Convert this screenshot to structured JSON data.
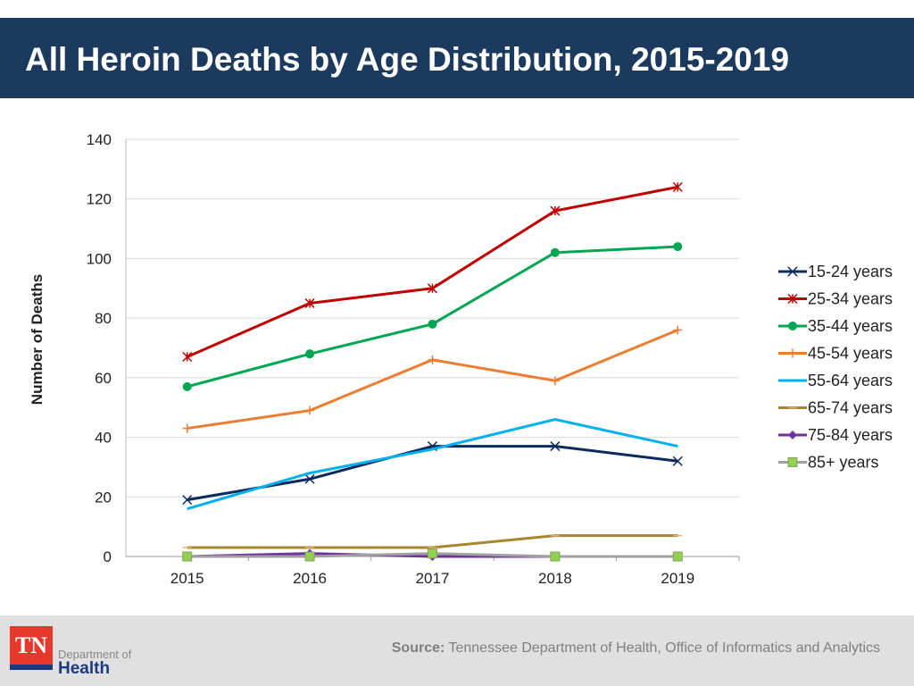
{
  "title": "All Heroin Deaths by Age Distribution, 2015-2019",
  "footer": {
    "source_label": "Source:",
    "source_text": "Tennessee Department of Health, Office of Informatics and Analytics",
    "logo": {
      "mark": "TN",
      "line1": "Department of",
      "line2": "Health"
    }
  },
  "chart_data": {
    "type": "line",
    "title": "",
    "xlabel": "",
    "ylabel": "Number of Deaths",
    "categories": [
      "2015",
      "2016",
      "2017",
      "2018",
      "2019"
    ],
    "ylim": [
      0,
      140
    ],
    "yticks": [
      0,
      20,
      40,
      60,
      80,
      100,
      120,
      140
    ],
    "grid": true,
    "legend": "right",
    "series": [
      {
        "name": "15-24 years",
        "values": [
          19,
          26,
          37,
          37,
          32
        ],
        "color": "#0d2a5c",
        "marker": "x"
      },
      {
        "name": "25-34 years",
        "values": [
          67,
          85,
          90,
          116,
          124
        ],
        "color": "#c00000",
        "marker": "star"
      },
      {
        "name": "35-44 years",
        "values": [
          57,
          68,
          78,
          102,
          104
        ],
        "color": "#00a651",
        "marker": "circle"
      },
      {
        "name": "45-54 years",
        "values": [
          43,
          49,
          66,
          59,
          76
        ],
        "color": "#ed7d31",
        "marker": "plus"
      },
      {
        "name": "55-64 years",
        "values": [
          16,
          28,
          36,
          46,
          37
        ],
        "color": "#00b0f0",
        "marker": "none"
      },
      {
        "name": "65-74 years",
        "values": [
          3,
          3,
          3,
          7,
          7
        ],
        "color": "#a6862e",
        "marker": "dash"
      },
      {
        "name": "75-84 years",
        "values": [
          0,
          1,
          0,
          0,
          0
        ],
        "color": "#7030a0",
        "marker": "diamond"
      },
      {
        "name": "85+ years",
        "values": [
          0,
          0,
          1,
          0,
          0
        ],
        "color": "#a0a0a0",
        "marker": "square"
      }
    ]
  }
}
